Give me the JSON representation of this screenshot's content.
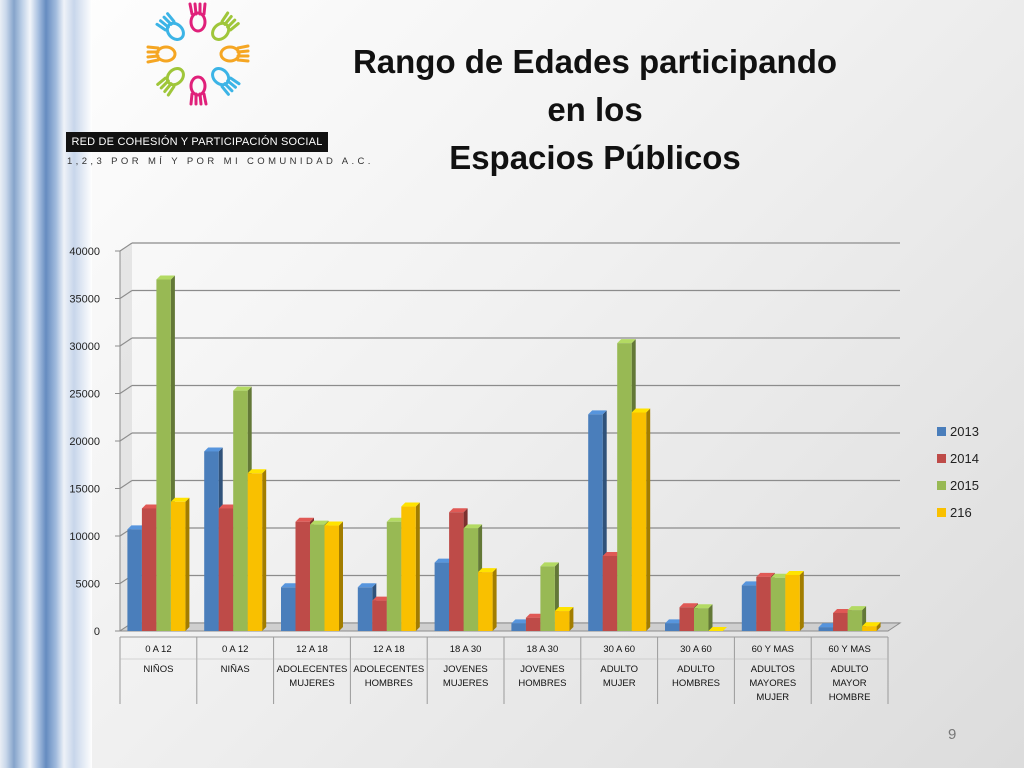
{
  "title": {
    "line1": "Rango de Edades participando",
    "line2": "en los",
    "line3": "Espacios Públicos"
  },
  "logo": {
    "band_text": "RED DE COHESIÓN Y PARTICIPACIÓN SOCIAL",
    "subtitle": "1,2,3 POR MÍ Y POR MI COMUNIDAD A.C.",
    "hand_colors": [
      "#e0207a",
      "#9fc63a",
      "#f5a623",
      "#3cb4e6"
    ]
  },
  "page_number": "9",
  "chart_data": {
    "type": "bar",
    "categories": [
      {
        "range": "0 A 12",
        "group": [
          "NIÑOS"
        ]
      },
      {
        "range": "0 A 12",
        "group": [
          "NIÑAS"
        ]
      },
      {
        "range": "12 A 18",
        "group": [
          "ADOLECENTES",
          "MUJERES"
        ]
      },
      {
        "range": "12 A 18",
        "group": [
          "ADOLECENTES",
          "HOMBRES"
        ]
      },
      {
        "range": "18 A 30",
        "group": [
          "JOVENES",
          "MUJERES"
        ]
      },
      {
        "range": "18 A 30",
        "group": [
          "JOVENES",
          "HOMBRES"
        ]
      },
      {
        "range": "30 A 60",
        "group": [
          "ADULTO",
          "MUJER"
        ]
      },
      {
        "range": "30 A 60",
        "group": [
          "ADULTO",
          "HOMBRES"
        ]
      },
      {
        "range": "60 Y MAS",
        "group": [
          "ADULTOS",
          "MAYORES",
          "MUJER"
        ]
      },
      {
        "range": "60 Y MAS",
        "group": [
          "ADULTO",
          "MAYOR",
          "HOMBRE"
        ]
      }
    ],
    "series": [
      {
        "name": "2013",
        "color": "#4a7ebb",
        "values": [
          10700,
          18900,
          4600,
          4600,
          7200,
          800,
          22800,
          800,
          4800,
          400
        ]
      },
      {
        "name": "2014",
        "color": "#be4b48",
        "values": [
          12900,
          12900,
          11500,
          3200,
          12500,
          1400,
          7900,
          2500,
          5700,
          1900
        ]
      },
      {
        "name": "2015",
        "color": "#98b954",
        "values": [
          37000,
          25300,
          11200,
          11500,
          10800,
          6800,
          30300,
          2400,
          5600,
          2200
        ]
      },
      {
        "name": "216",
        "color": "#f9c000",
        "values": [
          13600,
          16600,
          11100,
          13100,
          6200,
          2100,
          23000,
          0,
          5900,
          500
        ]
      }
    ],
    "yticks": [
      0,
      5000,
      10000,
      15000,
      20000,
      25000,
      30000,
      35000,
      40000
    ],
    "ylim": [
      0,
      40000
    ],
    "grid": true,
    "legend_position": "right"
  }
}
